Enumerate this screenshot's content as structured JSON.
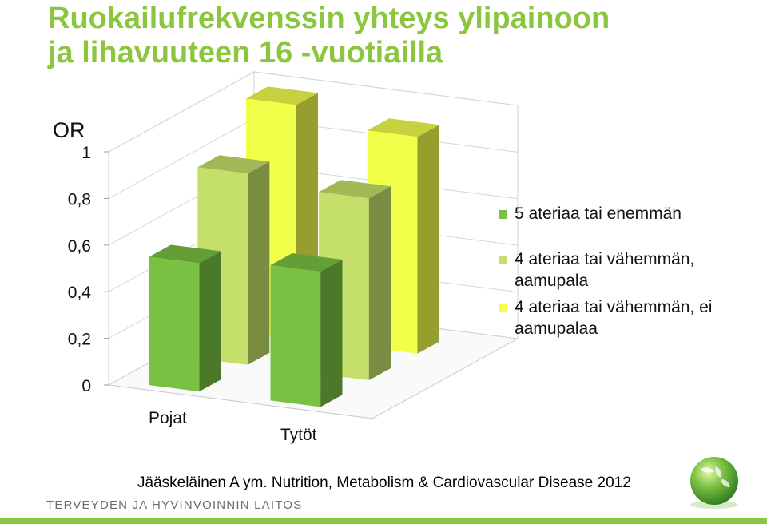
{
  "slide": {
    "title_lines": [
      "Ruokailufrekvenssin yhteys ylipainoon",
      "ja lihavuuteen 16 -vuotiailla"
    ],
    "citation": "Jääskeläinen A ym. Nutrition, Metabolism & Cardiovascular Disease 2012",
    "organization": "TERVEYDEN JA HYVINVOINNIN LAITOS",
    "accent_color": "#8cc63f",
    "logo_icon": "green-globe-logo"
  },
  "chart_data": {
    "type": "bar",
    "categories": [
      "Pojat",
      "Tytöt"
    ],
    "ylabel": "OR",
    "ylim": [
      0,
      1
    ],
    "yticks": [
      "0",
      "0,2",
      "0,4",
      "0,6",
      "0,8",
      "1"
    ],
    "series": [
      {
        "name": "5 ateriaa tai enemmän",
        "color": "#7ac143",
        "values": [
          0.55,
          0.58
        ]
      },
      {
        "name": "4 ateriaa tai vähemmän, aamupala",
        "color": "#c5e06a",
        "values": [
          0.82,
          0.78
        ]
      },
      {
        "name": "4 ateriaa tai vähemmän, ei aamupalaa",
        "color": "#f2ff4a",
        "values": [
          1.0,
          0.93
        ]
      }
    ],
    "legend_position": "right",
    "grid": true
  }
}
